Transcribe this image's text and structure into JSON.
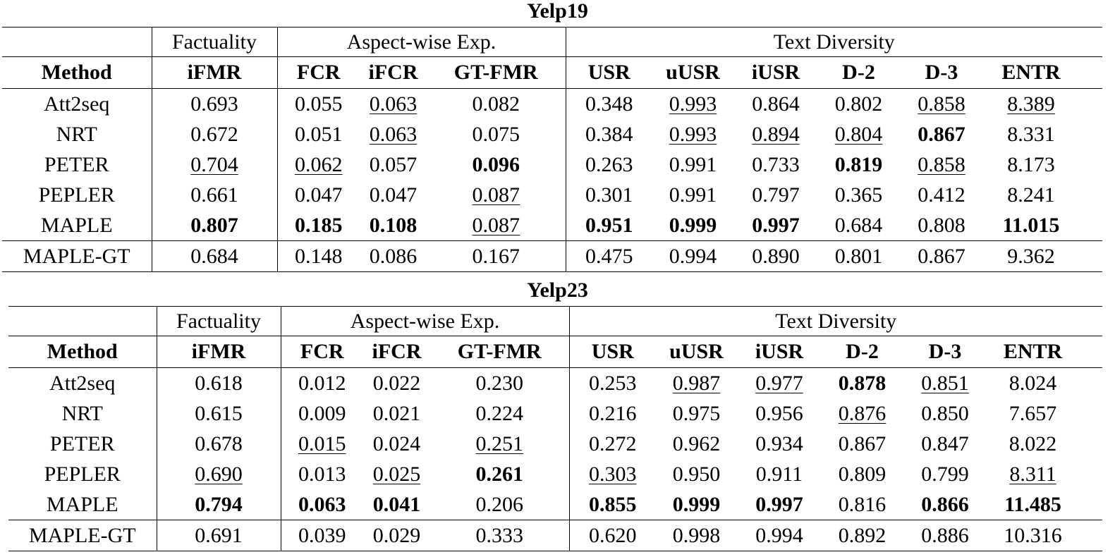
{
  "tables": [
    {
      "title": "Yelp19",
      "groups": [
        "Factuality",
        "Aspect-wise Exp.",
        "Text Diversity"
      ],
      "columns": [
        "Method",
        "iFMR",
        "FCR",
        "iFCR",
        "GT-FMR",
        "USR",
        "uUSR",
        "iUSR",
        "D-2",
        "D-3",
        "ENTR"
      ],
      "rows": [
        [
          "Att2seq",
          "0.693",
          "0.055",
          {
            "text": "0.063",
            "style": "underline"
          },
          "0.082",
          "0.348",
          {
            "text": "0.993",
            "style": "underline"
          },
          "0.864",
          "0.802",
          {
            "text": "0.858",
            "style": "underline"
          },
          {
            "text": "8.389",
            "style": "underline"
          }
        ],
        [
          "NRT",
          "0.672",
          "0.051",
          {
            "text": "0.063",
            "style": "underline"
          },
          "0.075",
          "0.384",
          {
            "text": "0.993",
            "style": "underline"
          },
          {
            "text": "0.894",
            "style": "underline"
          },
          {
            "text": "0.804",
            "style": "underline"
          },
          {
            "text": "0.867",
            "style": "bold"
          },
          "8.331"
        ],
        [
          "PETER",
          {
            "text": "0.704",
            "style": "underline"
          },
          {
            "text": "0.062",
            "style": "underline"
          },
          "0.057",
          {
            "text": "0.096",
            "style": "bold"
          },
          "0.263",
          "0.991",
          "0.733",
          {
            "text": "0.819",
            "style": "bold"
          },
          {
            "text": "0.858",
            "style": "underline"
          },
          "8.173"
        ],
        [
          "PEPLER",
          "0.661",
          "0.047",
          "0.047",
          {
            "text": "0.087",
            "style": "underline"
          },
          "0.301",
          "0.991",
          "0.797",
          "0.365",
          "0.412",
          "8.241"
        ],
        [
          "MAPLE",
          {
            "text": "0.807",
            "style": "bold"
          },
          {
            "text": "0.185",
            "style": "bold"
          },
          {
            "text": "0.108",
            "style": "bold"
          },
          {
            "text": "0.087",
            "style": "underline"
          },
          {
            "text": "0.951",
            "style": "bold"
          },
          {
            "text": "0.999",
            "style": "bold"
          },
          {
            "text": "0.997",
            "style": "bold"
          },
          "0.684",
          "0.808",
          {
            "text": "11.015",
            "style": "bold"
          }
        ],
        [
          "MAPLE-GT",
          "0.684",
          "0.148",
          "0.086",
          "0.167",
          "0.475",
          "0.994",
          "0.890",
          "0.801",
          "0.867",
          "9.362"
        ]
      ]
    },
    {
      "title": "Yelp23",
      "groups": [
        "Factuality",
        "Aspect-wise Exp.",
        "Text Diversity"
      ],
      "columns": [
        "Method",
        "iFMR",
        "FCR",
        "iFCR",
        "GT-FMR",
        "USR",
        "uUSR",
        "iUSR",
        "D-2",
        "D-3",
        "ENTR"
      ],
      "rows": [
        [
          "Att2seq",
          "0.618",
          "0.012",
          "0.022",
          "0.230",
          "0.253",
          {
            "text": "0.987",
            "style": "underline"
          },
          {
            "text": "0.977",
            "style": "underline"
          },
          {
            "text": "0.878",
            "style": "bold"
          },
          {
            "text": "0.851",
            "style": "underline"
          },
          "8.024"
        ],
        [
          "NRT",
          "0.615",
          "0.009",
          "0.021",
          "0.224",
          "0.216",
          "0.975",
          "0.956",
          {
            "text": "0.876",
            "style": "underline"
          },
          "0.850",
          "7.657"
        ],
        [
          "PETER",
          "0.678",
          {
            "text": "0.015",
            "style": "underline"
          },
          "0.024",
          {
            "text": "0.251",
            "style": "underline"
          },
          "0.272",
          "0.962",
          "0.934",
          "0.867",
          "0.847",
          "8.022"
        ],
        [
          "PEPLER",
          {
            "text": "0.690",
            "style": "underline"
          },
          "0.013",
          {
            "text": "0.025",
            "style": "underline"
          },
          {
            "text": "0.261",
            "style": "bold"
          },
          {
            "text": "0.303",
            "style": "underline"
          },
          "0.950",
          "0.911",
          "0.809",
          "0.799",
          {
            "text": "8.311",
            "style": "underline"
          }
        ],
        [
          "MAPLE",
          {
            "text": "0.794",
            "style": "bold"
          },
          {
            "text": "0.063",
            "style": "bold"
          },
          {
            "text": "0.041",
            "style": "bold"
          },
          "0.206",
          {
            "text": "0.855",
            "style": "bold"
          },
          {
            "text": "0.999",
            "style": "bold"
          },
          {
            "text": "0.997",
            "style": "bold"
          },
          "0.816",
          {
            "text": "0.866",
            "style": "bold"
          },
          {
            "text": "11.485",
            "style": "bold"
          }
        ],
        [
          "MAPLE-GT",
          "0.691",
          "0.039",
          "0.029",
          "0.333",
          "0.620",
          "0.998",
          "0.994",
          "0.892",
          "0.886",
          "10.316"
        ]
      ]
    }
  ]
}
